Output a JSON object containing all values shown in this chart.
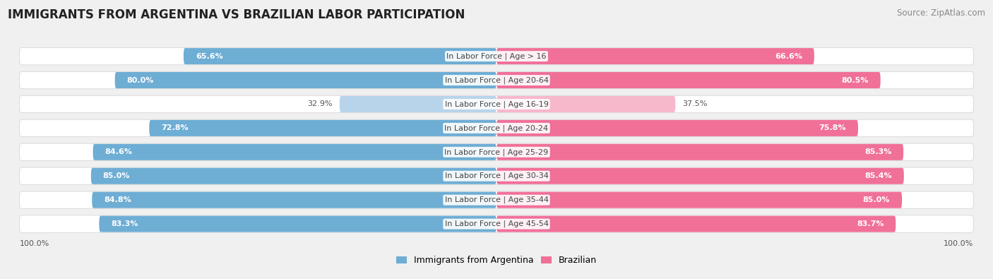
{
  "title": "IMMIGRANTS FROM ARGENTINA VS BRAZILIAN LABOR PARTICIPATION",
  "source": "Source: ZipAtlas.com",
  "categories": [
    "In Labor Force | Age > 16",
    "In Labor Force | Age 20-64",
    "In Labor Force | Age 16-19",
    "In Labor Force | Age 20-24",
    "In Labor Force | Age 25-29",
    "In Labor Force | Age 30-34",
    "In Labor Force | Age 35-44",
    "In Labor Force | Age 45-54"
  ],
  "argentina_values": [
    65.6,
    80.0,
    32.9,
    72.8,
    84.6,
    85.0,
    84.8,
    83.3
  ],
  "brazilian_values": [
    66.6,
    80.5,
    37.5,
    75.8,
    85.3,
    85.4,
    85.0,
    83.7
  ],
  "argentina_labels": [
    "65.6%",
    "80.0%",
    "32.9%",
    "72.8%",
    "84.6%",
    "85.0%",
    "84.8%",
    "83.3%"
  ],
  "brazilian_labels": [
    "66.6%",
    "80.5%",
    "37.5%",
    "75.8%",
    "85.3%",
    "85.4%",
    "85.0%",
    "83.7%"
  ],
  "argentina_color": "#6eadd4",
  "brazilian_color": "#f07098",
  "argentina_color_light": "#b8d4eb",
  "brazilian_color_light": "#f8b8cc",
  "max_value": 100.0,
  "legend_argentina": "Immigrants from Argentina",
  "legend_brazilian": "Brazilian",
  "bg_color": "#f0f0f0",
  "row_bg_color": "#ffffff",
  "title_fontsize": 12,
  "source_fontsize": 8.5,
  "label_fontsize": 8,
  "value_fontsize": 8
}
